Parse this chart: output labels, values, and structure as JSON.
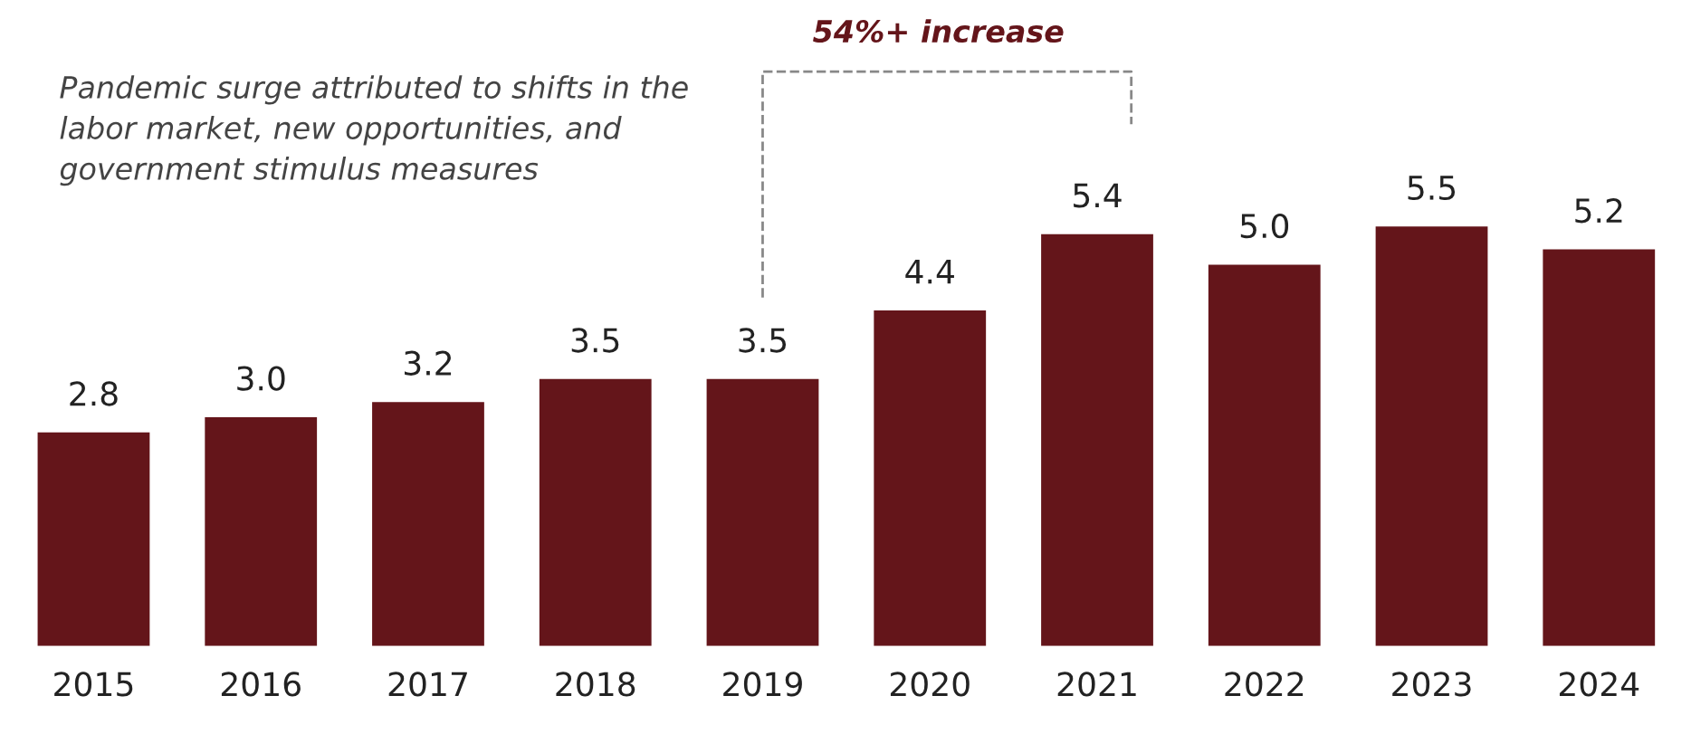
{
  "chart_data": {
    "type": "bar",
    "categories": [
      "2015",
      "2016",
      "2017",
      "2018",
      "2019",
      "2020",
      "2021",
      "2022",
      "2023",
      "2024"
    ],
    "values": [
      2.8,
      3.0,
      3.2,
      3.5,
      3.5,
      4.4,
      5.4,
      5.0,
      5.5,
      5.2
    ],
    "color": "#64151a",
    "value_labels": [
      "2.8",
      "3.0",
      "3.2",
      "3.5",
      "3.5",
      "4.4",
      "5.4",
      "5.0",
      "5.5",
      "5.2"
    ],
    "grid": false,
    "legend": false,
    "tick_labels": "x",
    "annotations": [
      "Pandemic surge attributed to shifts in the\nlabor market, new opportunities, and\ngovernment stimulus measures",
      "54%+ increase"
    ]
  }
}
